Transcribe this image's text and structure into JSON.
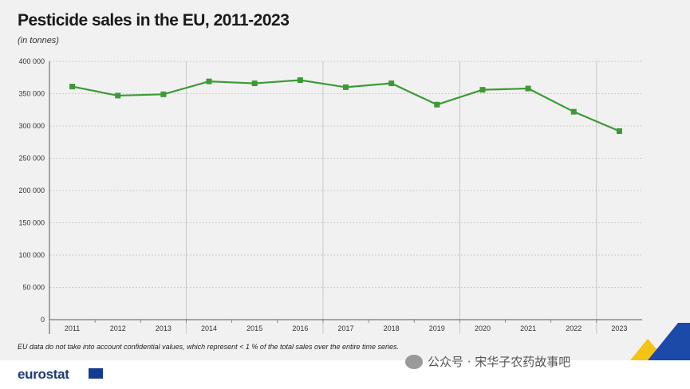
{
  "chart_data": {
    "type": "line",
    "title": "Pesticide sales in the EU, 2011-2023",
    "subtitle": "(in tonnes)",
    "x": [
      "2011",
      "2012",
      "2013",
      "2014",
      "2015",
      "2016",
      "2017",
      "2018",
      "2019",
      "2020",
      "2021",
      "2022",
      "2023"
    ],
    "series": [
      {
        "values": [
          361000,
          347000,
          349000,
          369000,
          366000,
          371000,
          360000,
          366000,
          333000,
          356000,
          358000,
          322000,
          292000
        ]
      }
    ],
    "ylim": [
      0,
      400000
    ],
    "yticks": [
      0,
      50000,
      100000,
      150000,
      200000,
      250000,
      300000,
      350000,
      400000
    ],
    "ytick_labels": [
      "0",
      "50 000",
      "100 000",
      "150 000",
      "200 000",
      "250 000",
      "300 000",
      "350 000",
      "400 000"
    ],
    "line_color": "#3c9a35",
    "grid": true,
    "note": "EU data do not take into account confidential values, which represent < 1 % of the total sales over the entire time series."
  },
  "footer": {
    "logo_text": "eurostat",
    "watermark": "公众号 · 宋华子农药故事吧"
  }
}
